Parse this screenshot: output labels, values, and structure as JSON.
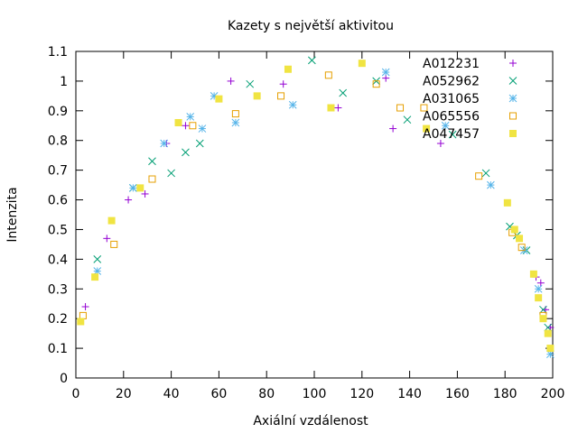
{
  "chart_data": {
    "type": "scatter",
    "title": "Kazety s největší aktivitou",
    "xlabel": "Axiální vzdálenost",
    "ylabel": "Intenzita",
    "xlim": [
      0,
      200
    ],
    "ylim": [
      0,
      1.1
    ],
    "xticks": [
      "0",
      "20",
      "40",
      "60",
      "80",
      "100",
      "120",
      "140",
      "160",
      "180",
      "200"
    ],
    "yticks": [
      "0",
      "0.1",
      "0.2",
      "0.3",
      "0.4",
      "0.5",
      "0.6",
      "0.7",
      "0.8",
      "0.9",
      "1",
      "1.1"
    ],
    "grid": false,
    "legend_position": "top-right",
    "series": [
      {
        "name": "A012231",
        "marker": "plus",
        "color": "#9400d3",
        "points": [
          [
            4,
            0.24
          ],
          [
            13,
            0.47
          ],
          [
            22,
            0.6
          ],
          [
            29,
            0.62
          ],
          [
            38,
            0.79
          ],
          [
            46,
            0.85
          ],
          [
            65,
            1.0
          ],
          [
            87,
            0.99
          ],
          [
            110,
            0.91
          ],
          [
            130,
            1.01
          ],
          [
            133,
            0.84
          ],
          [
            153,
            0.79
          ],
          [
            193,
            0.34
          ],
          [
            195,
            0.32
          ],
          [
            197,
            0.23
          ],
          [
            199,
            0.17
          ]
        ]
      },
      {
        "name": "A052962",
        "marker": "x",
        "color": "#009e73",
        "points": [
          [
            9,
            0.4
          ],
          [
            24,
            0.64
          ],
          [
            32,
            0.73
          ],
          [
            40,
            0.69
          ],
          [
            46,
            0.76
          ],
          [
            52,
            0.79
          ],
          [
            73,
            0.99
          ],
          [
            99,
            1.07
          ],
          [
            112,
            0.96
          ],
          [
            126,
            1.0
          ],
          [
            139,
            0.87
          ],
          [
            158,
            0.82
          ],
          [
            172,
            0.69
          ],
          [
            182,
            0.51
          ],
          [
            185,
            0.48
          ],
          [
            189,
            0.43
          ],
          [
            196,
            0.23
          ],
          [
            198,
            0.17
          ]
        ]
      },
      {
        "name": "A031065",
        "marker": "star",
        "color": "#56b4e9",
        "points": [
          [
            9,
            0.36
          ],
          [
            24,
            0.64
          ],
          [
            37,
            0.79
          ],
          [
            48,
            0.88
          ],
          [
            53,
            0.84
          ],
          [
            58,
            0.95
          ],
          [
            67,
            0.86
          ],
          [
            91,
            0.92
          ],
          [
            130,
            1.03
          ],
          [
            155,
            0.85
          ],
          [
            174,
            0.65
          ],
          [
            188,
            0.43
          ],
          [
            194,
            0.3
          ],
          [
            199,
            0.08
          ]
        ]
      },
      {
        "name": "A065556",
        "marker": "square-open",
        "color": "#e69f00",
        "points": [
          [
            3,
            0.21
          ],
          [
            16,
            0.45
          ],
          [
            32,
            0.67
          ],
          [
            49,
            0.85
          ],
          [
            67,
            0.89
          ],
          [
            86,
            0.95
          ],
          [
            106,
            1.02
          ],
          [
            126,
            0.99
          ],
          [
            136,
            0.91
          ],
          [
            146,
            0.91
          ],
          [
            169,
            0.68
          ],
          [
            183,
            0.49
          ],
          [
            187,
            0.44
          ],
          [
            196,
            0.21
          ]
        ]
      },
      {
        "name": "A047457",
        "marker": "square-filled",
        "color": "#f0e442",
        "points": [
          [
            2,
            0.19
          ],
          [
            8,
            0.34
          ],
          [
            15,
            0.53
          ],
          [
            27,
            0.64
          ],
          [
            43,
            0.86
          ],
          [
            60,
            0.94
          ],
          [
            76,
            0.95
          ],
          [
            89,
            1.04
          ],
          [
            107,
            0.91
          ],
          [
            120,
            1.06
          ],
          [
            147,
            0.84
          ],
          [
            181,
            0.59
          ],
          [
            184,
            0.5
          ],
          [
            186,
            0.47
          ],
          [
            192,
            0.35
          ],
          [
            194,
            0.27
          ],
          [
            196,
            0.2
          ],
          [
            198,
            0.15
          ],
          [
            199,
            0.1
          ]
        ]
      }
    ]
  }
}
